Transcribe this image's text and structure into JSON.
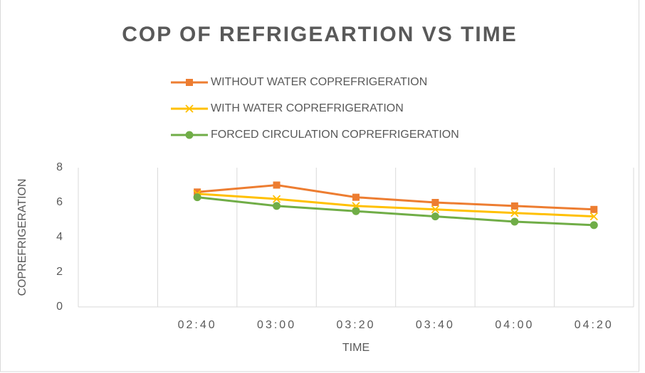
{
  "chart_data": {
    "type": "line",
    "title": "COP OF REFRIGEARTION VS TIME",
    "x_label": "TIME",
    "y_label": "COPREFRIGERATION",
    "categories": [
      null,
      "02:40",
      "03:00",
      "03:20",
      "03:40",
      "04:00",
      "04:20"
    ],
    "series": [
      {
        "name": "WITHOUT WATER COPREFRIGERATION",
        "color": "#ed7d31",
        "marker": "square",
        "values": [
          null,
          6.6,
          7.0,
          6.3,
          6.0,
          5.8,
          5.6
        ]
      },
      {
        "name": "WITH WATER COPREFRIGERATION",
        "color": "#ffc000",
        "marker": "x",
        "values": [
          null,
          6.5,
          6.2,
          5.8,
          5.6,
          5.4,
          5.2
        ]
      },
      {
        "name": "FORCED CIRCULATION COPREFRIGERATION",
        "color": "#70ad47",
        "marker": "circle",
        "values": [
          null,
          6.3,
          5.8,
          5.5,
          5.2,
          4.9,
          4.7
        ]
      }
    ],
    "ylim": [
      0,
      8
    ],
    "yticks": [
      0,
      2,
      4,
      6,
      8
    ],
    "grid": "x",
    "legend": "top"
  }
}
